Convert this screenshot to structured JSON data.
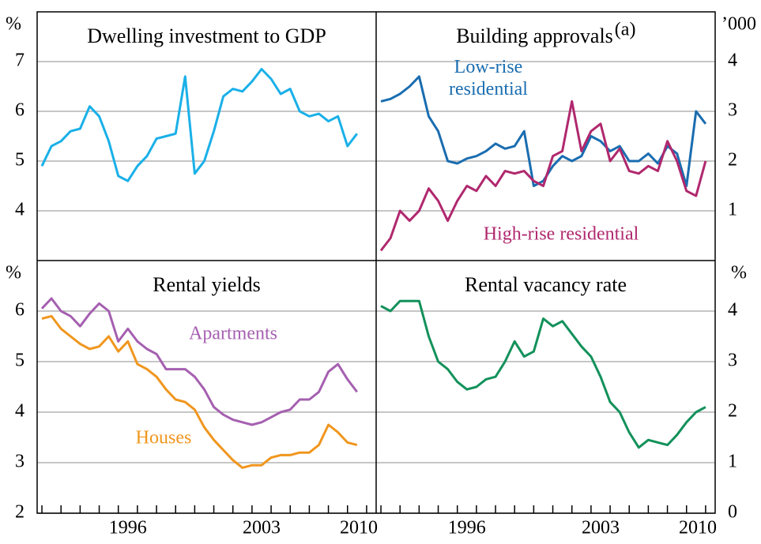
{
  "chart_data": [
    {
      "type": "line",
      "title": "Dwelling investment to GDP",
      "unit": "%",
      "yaxis_side": "left",
      "xlim": [
        1991.75,
        2009.5
      ],
      "ylim": [
        3,
        8
      ],
      "yticks": [
        4,
        5,
        6,
        7
      ],
      "grid": true,
      "x": [
        1992.0,
        1992.5,
        1993.0,
        1993.5,
        1994.0,
        1994.5,
        1995.0,
        1995.5,
        1996.0,
        1996.5,
        1997.0,
        1997.5,
        1998.0,
        1998.5,
        1999.0,
        1999.5,
        2000.0,
        2000.5,
        2001.0,
        2001.5,
        2002.0,
        2002.5,
        2003.0,
        2003.5,
        2004.0,
        2004.5,
        2005.0,
        2005.5,
        2006.0,
        2006.5,
        2007.0,
        2007.5,
        2008.0,
        2008.5
      ],
      "series": [
        {
          "name": null,
          "color": "#1ab0e8",
          "values": [
            4.9,
            5.3,
            5.4,
            5.6,
            5.65,
            6.1,
            5.9,
            5.4,
            4.7,
            4.6,
            4.9,
            5.1,
            5.45,
            5.5,
            5.55,
            6.7,
            4.75,
            5.0,
            5.6,
            6.3,
            6.45,
            6.4,
            6.6,
            6.85,
            6.65,
            6.35,
            6.45,
            6.0,
            5.9,
            5.95,
            5.8,
            5.9,
            5.3,
            5.55
          ]
        }
      ]
    },
    {
      "type": "line",
      "title": "Building approvals",
      "title_note": "(a)",
      "unit": "’000",
      "yaxis_side": "right",
      "xlim": [
        1991.75,
        2009.5
      ],
      "ylim": [
        0,
        5
      ],
      "yticks": [
        1,
        2,
        3,
        4
      ],
      "grid": true,
      "x": [
        1992.0,
        1992.5,
        1993.0,
        1993.5,
        1994.0,
        1994.5,
        1995.0,
        1995.5,
        1996.0,
        1996.5,
        1997.0,
        1997.5,
        1998.0,
        1998.5,
        1999.0,
        1999.5,
        2000.0,
        2000.5,
        2001.0,
        2001.5,
        2002.0,
        2002.5,
        2003.0,
        2003.5,
        2004.0,
        2004.5,
        2005.0,
        2005.5,
        2006.0,
        2006.5,
        2007.0,
        2007.5,
        2008.0,
        2008.5,
        2009.0
      ],
      "series": [
        {
          "name": "Low-rise residential",
          "color": "#1a6db0",
          "values": [
            3.2,
            3.25,
            3.35,
            3.5,
            3.7,
            2.9,
            2.6,
            2.0,
            1.95,
            2.05,
            2.1,
            2.2,
            2.35,
            2.25,
            2.3,
            2.6,
            1.5,
            1.6,
            1.9,
            2.1,
            2.0,
            2.1,
            2.5,
            2.4,
            2.2,
            2.3,
            2.0,
            2.0,
            2.15,
            1.95,
            2.3,
            2.15,
            1.5,
            3.0,
            2.75
          ]
        },
        {
          "name": "High-rise residential",
          "color": "#b0286e",
          "values": [
            0.2,
            0.45,
            1.0,
            0.8,
            1.0,
            1.45,
            1.2,
            0.8,
            1.2,
            1.5,
            1.4,
            1.7,
            1.5,
            1.8,
            1.75,
            1.8,
            1.6,
            1.5,
            2.1,
            2.2,
            3.2,
            2.2,
            2.6,
            2.75,
            2.0,
            2.25,
            1.8,
            1.75,
            1.9,
            1.8,
            2.4,
            2.0,
            1.4,
            1.3,
            2.0
          ]
        }
      ]
    },
    {
      "type": "line",
      "title": "Rental yields",
      "unit": "%",
      "yaxis_side": "left",
      "xlim": [
        1991.75,
        2009.5
      ],
      "ylim": [
        2,
        7
      ],
      "yticks": [
        2,
        3,
        4,
        5,
        6
      ],
      "xticks": [
        1996,
        2003,
        2010
      ],
      "grid": true,
      "x": [
        1992.0,
        1992.5,
        1993.0,
        1993.5,
        1994.0,
        1994.5,
        1995.0,
        1995.5,
        1996.0,
        1996.5,
        1997.0,
        1997.5,
        1998.0,
        1998.5,
        1999.0,
        1999.5,
        2000.0,
        2000.5,
        2001.0,
        2001.5,
        2002.0,
        2002.5,
        2003.0,
        2003.5,
        2004.0,
        2004.5,
        2005.0,
        2005.5,
        2006.0,
        2006.5,
        2007.0,
        2007.5,
        2008.0,
        2008.5
      ],
      "series": [
        {
          "name": "Apartments",
          "color": "#a560b0",
          "values": [
            6.05,
            6.25,
            6.0,
            5.9,
            5.7,
            5.95,
            6.15,
            6.0,
            5.4,
            5.65,
            5.4,
            5.25,
            5.15,
            4.85,
            4.85,
            4.85,
            4.7,
            4.45,
            4.1,
            3.95,
            3.85,
            3.8,
            3.75,
            3.8,
            3.9,
            4.0,
            4.05,
            4.25,
            4.25,
            4.4,
            4.8,
            4.95,
            4.65,
            4.4
          ]
        },
        {
          "name": "Houses",
          "color": "#f0961e",
          "values": [
            5.85,
            5.9,
            5.65,
            5.5,
            5.35,
            5.25,
            5.3,
            5.5,
            5.2,
            5.4,
            4.95,
            4.85,
            4.7,
            4.45,
            4.25,
            4.2,
            4.05,
            3.7,
            3.45,
            3.25,
            3.05,
            2.9,
            2.95,
            2.95,
            3.1,
            3.15,
            3.15,
            3.2,
            3.2,
            3.35,
            3.75,
            3.6,
            3.4,
            3.35
          ]
        }
      ]
    },
    {
      "type": "line",
      "title": "Rental vacancy rate",
      "unit": "%",
      "yaxis_side": "right",
      "xlim": [
        1991.75,
        2009.5
      ],
      "ylim": [
        0,
        5
      ],
      "yticks": [
        0,
        1,
        2,
        3,
        4
      ],
      "xticks": [
        1996,
        2003,
        2010
      ],
      "grid": true,
      "x": [
        1992.0,
        1992.5,
        1993.0,
        1993.5,
        1994.0,
        1994.5,
        1995.0,
        1995.5,
        1996.0,
        1996.5,
        1997.0,
        1997.5,
        1998.0,
        1998.5,
        1999.0,
        1999.5,
        2000.0,
        2000.5,
        2001.0,
        2001.5,
        2002.0,
        2002.5,
        2003.0,
        2003.5,
        2004.0,
        2004.5,
        2005.0,
        2005.5,
        2006.0,
        2006.5,
        2007.0,
        2007.5,
        2008.0,
        2008.5,
        2009.0
      ],
      "series": [
        {
          "name": null,
          "color": "#12915a",
          "values": [
            4.1,
            4.0,
            4.2,
            4.2,
            4.2,
            3.5,
            3.0,
            2.85,
            2.6,
            2.45,
            2.5,
            2.65,
            2.7,
            3.0,
            3.4,
            3.1,
            3.2,
            3.85,
            3.7,
            3.8,
            3.55,
            3.3,
            3.1,
            2.7,
            2.2,
            2.0,
            1.6,
            1.3,
            1.45,
            1.4,
            1.35,
            1.55,
            1.8,
            2.0,
            2.1
          ]
        }
      ]
    }
  ]
}
